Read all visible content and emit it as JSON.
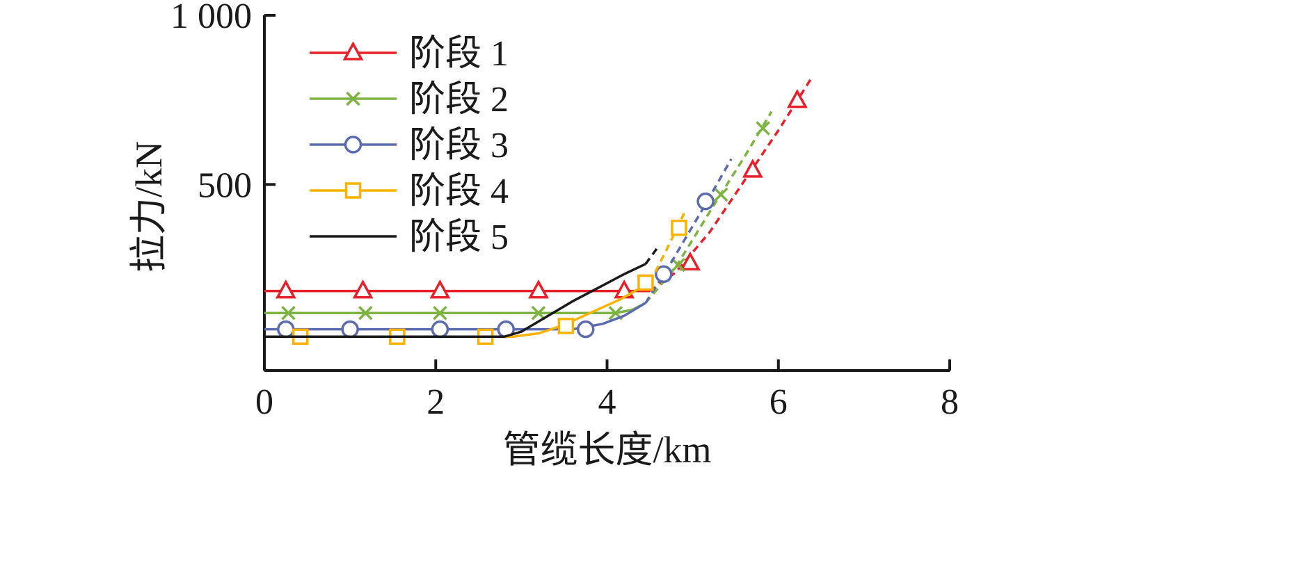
{
  "chart_data": {
    "type": "line",
    "title": "",
    "xlabel": "管缆长度/km",
    "ylabel": "拉力/kN",
    "xlim": [
      0,
      8
    ],
    "ylim": [
      -50,
      1000
    ],
    "x_ticks": [
      0,
      2,
      4,
      6,
      8
    ],
    "x_tick_labels": [
      "0",
      "2",
      "4",
      "6",
      "8"
    ],
    "y_ticks": [
      500,
      1000
    ],
    "y_tick_labels": [
      "500",
      "1 000"
    ],
    "grid": false,
    "legend_position": "top-left",
    "series": [
      {
        "name": "阶段 1",
        "color": "#e8202a",
        "marker": "triangle",
        "solid": [
          [
            0,
            185
          ],
          [
            4.5,
            185
          ]
        ],
        "dashed": [
          [
            4.5,
            185
          ],
          [
            4.8,
            240
          ],
          [
            5.2,
            360
          ],
          [
            5.6,
            510
          ],
          [
            6.0,
            660
          ],
          [
            6.4,
            820
          ]
        ],
        "markers": [
          [
            0.25,
            185
          ],
          [
            1.15,
            185
          ],
          [
            2.05,
            185
          ],
          [
            3.2,
            185
          ],
          [
            4.2,
            185
          ],
          [
            4.97,
            268
          ],
          [
            5.7,
            542
          ],
          [
            6.22,
            748
          ]
        ]
      },
      {
        "name": "阶段 2",
        "color": "#7cb342",
        "marker": "x",
        "solid": [
          [
            0,
            120
          ],
          [
            4.1,
            120
          ],
          [
            4.3,
            130
          ],
          [
            4.45,
            150
          ]
        ],
        "dashed": [
          [
            4.45,
            150
          ],
          [
            4.8,
            255
          ],
          [
            5.2,
            420
          ],
          [
            5.6,
            580
          ],
          [
            5.92,
            715
          ]
        ],
        "markers": [
          [
            0.28,
            120
          ],
          [
            1.18,
            120
          ],
          [
            2.05,
            120
          ],
          [
            3.2,
            120
          ],
          [
            4.1,
            120
          ],
          [
            4.83,
            262
          ],
          [
            5.33,
            470
          ],
          [
            5.82,
            666
          ]
        ]
      },
      {
        "name": "阶段 3",
        "color": "#5b6bae",
        "marker": "circle",
        "solid": [
          [
            0,
            72
          ],
          [
            3.6,
            72
          ],
          [
            3.95,
            88
          ],
          [
            4.2,
            112
          ],
          [
            4.45,
            150
          ]
        ],
        "dashed": [
          [
            4.45,
            150
          ],
          [
            4.75,
            270
          ],
          [
            5.1,
            420
          ],
          [
            5.45,
            575
          ]
        ],
        "markers": [
          [
            0.25,
            72
          ],
          [
            1.0,
            72
          ],
          [
            2.05,
            72
          ],
          [
            2.82,
            72
          ],
          [
            3.75,
            72
          ],
          [
            4.66,
            235
          ],
          [
            5.15,
            450
          ]
        ]
      },
      {
        "name": "阶段 4",
        "color": "#f9b300",
        "marker": "square",
        "solid": [
          [
            0,
            50
          ],
          [
            2.9,
            50
          ],
          [
            3.2,
            60
          ],
          [
            3.5,
            85
          ],
          [
            3.8,
            120
          ],
          [
            4.15,
            160
          ],
          [
            4.5,
            210
          ]
        ],
        "dashed": [
          [
            4.5,
            210
          ],
          [
            4.7,
            310
          ],
          [
            4.9,
            415
          ]
        ],
        "markers": [
          [
            0.42,
            50
          ],
          [
            1.55,
            50
          ],
          [
            2.58,
            50
          ],
          [
            3.52,
            82
          ],
          [
            4.45,
            210
          ],
          [
            4.84,
            372
          ]
        ]
      },
      {
        "name": "阶段 5",
        "color": "#1a1a1a",
        "marker": "none",
        "solid": [
          [
            0,
            50
          ],
          [
            2.8,
            50
          ],
          [
            3.0,
            65
          ],
          [
            3.3,
            110
          ],
          [
            3.6,
            155
          ],
          [
            3.9,
            195
          ],
          [
            4.2,
            235
          ],
          [
            4.45,
            265
          ]
        ],
        "dashed": [
          [
            4.45,
            265
          ],
          [
            4.58,
            310
          ]
        ],
        "markers": []
      }
    ]
  }
}
